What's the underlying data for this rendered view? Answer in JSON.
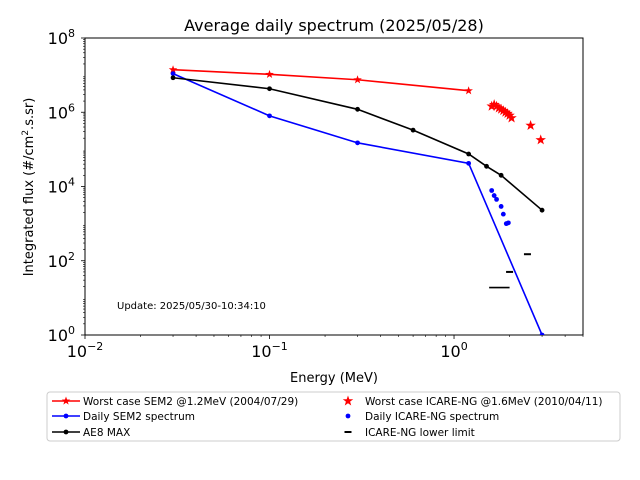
{
  "chart_data": {
    "type": "line",
    "title": "Average daily spectrum (2025/05/28)",
    "xlabel": "Energy (MeV)",
    "ylabel_main": "Integrated flux (#/cm",
    "ylabel_sup": "2",
    "ylabel_tail": ".s.sr)",
    "xscale": "log",
    "yscale": "log",
    "xlim": [
      0.01,
      5
    ],
    "ylim": [
      1,
      100000000
    ],
    "x_ticks": [
      {
        "value": 0.01,
        "base": "10",
        "exp": "−2"
      },
      {
        "value": 0.1,
        "base": "10",
        "exp": "−1"
      },
      {
        "value": 1,
        "base": "10",
        "exp": "0"
      }
    ],
    "y_ticks": [
      {
        "value": 1,
        "base": "10",
        "exp": "0"
      },
      {
        "value": 100,
        "base": "10",
        "exp": "2"
      },
      {
        "value": 10000,
        "base": "10",
        "exp": "4"
      },
      {
        "value": 1000000,
        "base": "10",
        "exp": "6"
      },
      {
        "value": 100000000,
        "base": "10",
        "exp": "8"
      }
    ],
    "annotation": "Update: 2025/05/30-10:34:10",
    "series": [
      {
        "name": "Worst case SEM2 @1.2MeV (2004/07/29)",
        "color": "#ff0000",
        "marker": "star",
        "style": "line",
        "x": [
          0.03,
          0.1,
          0.3,
          1.2
        ],
        "y": [
          14000000,
          10500000,
          7500000,
          3800000
        ]
      },
      {
        "name": "Daily SEM2 spectrum",
        "color": "#0000ff",
        "marker": "dot",
        "style": "line",
        "x": [
          0.03,
          0.1,
          0.3,
          1.2,
          3.0
        ],
        "y": [
          11000000,
          800000,
          150000,
          42000,
          1
        ]
      },
      {
        "name": "AE8 MAX",
        "color": "#000000",
        "marker": "dot",
        "style": "line",
        "x": [
          0.03,
          0.1,
          0.3,
          0.6,
          1.2,
          1.5,
          1.8,
          3.0
        ],
        "y": [
          8500000,
          4300000,
          1200000,
          330000,
          75000,
          35000,
          20000,
          2300
        ]
      },
      {
        "name": "Worst case ICARE-NG @1.6MeV (2010/04/11)",
        "color": "#ff0000",
        "marker": "star",
        "style": "markers",
        "x": [
          1.6,
          1.65,
          1.7,
          1.75,
          1.8,
          1.85,
          1.9,
          1.95,
          2.0,
          2.05,
          2.6,
          2.95
        ],
        "y": [
          1450000,
          1600000,
          1450000,
          1300000,
          1200000,
          1100000,
          1000000,
          920000,
          820000,
          700000,
          440000,
          180000
        ]
      },
      {
        "name": "Daily ICARE-NG spectrum",
        "color": "#0000ff",
        "marker": "dot",
        "style": "markers",
        "x": [
          1.6,
          1.65,
          1.7,
          1.8,
          1.85,
          1.92,
          1.97
        ],
        "y": [
          7800,
          5700,
          4500,
          2900,
          1800,
          1000,
          1050
        ]
      },
      {
        "name": "ICARE-NG lower limit",
        "color": "#000000",
        "marker": "dash",
        "style": "markers",
        "x": [
          2.0,
          2.5
        ],
        "y": [
          50,
          150
        ]
      }
    ],
    "extra_segment": {
      "x": [
        1.55,
        2.0
      ],
      "y": [
        19,
        19
      ],
      "color": "#000000"
    }
  }
}
